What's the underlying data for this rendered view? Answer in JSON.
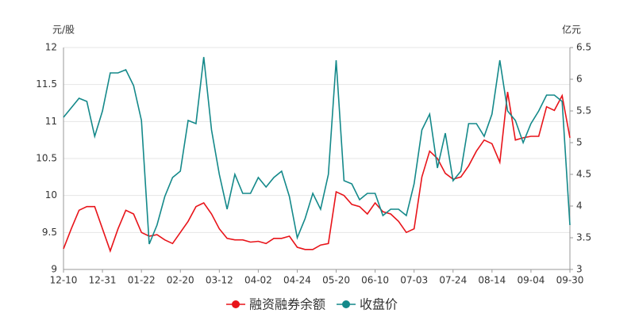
{
  "chart_data": {
    "type": "line",
    "y_label": "元/股",
    "y2_label": "亿元",
    "categories": [
      "12-10",
      null,
      null,
      null,
      null,
      "12-31",
      null,
      null,
      null,
      null,
      "01-22",
      null,
      null,
      null,
      null,
      "02-20",
      null,
      null,
      null,
      null,
      "03-12",
      null,
      null,
      null,
      null,
      "04-02",
      null,
      null,
      null,
      null,
      "04-24",
      null,
      null,
      null,
      null,
      "05-20",
      null,
      null,
      null,
      null,
      "06-10",
      null,
      null,
      null,
      null,
      "07-03",
      null,
      null,
      null,
      null,
      "07-24",
      null,
      null,
      null,
      null,
      "08-14",
      null,
      null,
      null,
      null,
      "09-04",
      null,
      null,
      null,
      null,
      "09-30"
    ],
    "series": [
      {
        "name": "融资融券余额",
        "color": "#e8141a",
        "axis": "y",
        "values": [
          9.28,
          9.55,
          9.8,
          9.85,
          9.85,
          9.55,
          9.25,
          9.55,
          9.8,
          9.75,
          9.5,
          9.45,
          9.47,
          9.4,
          9.35,
          9.5,
          9.65,
          9.85,
          9.9,
          9.75,
          9.55,
          9.42,
          9.4,
          9.4,
          9.37,
          9.38,
          9.35,
          9.42,
          9.42,
          9.45,
          9.3,
          9.27,
          9.27,
          9.33,
          9.35,
          10.05,
          10.0,
          9.88,
          9.85,
          9.75,
          9.9,
          9.78,
          9.75,
          9.65,
          9.5,
          9.55,
          10.25,
          10.6,
          10.5,
          10.3,
          10.22,
          10.25,
          10.4,
          10.6,
          10.75,
          10.7,
          10.45,
          11.4,
          10.75,
          10.78,
          10.8,
          10.8,
          11.2,
          11.15,
          11.35,
          10.78
        ]
      },
      {
        "name": "收盘价",
        "color": "#14898a",
        "axis": "y2",
        "values": [
          5.4,
          5.55,
          5.7,
          5.65,
          5.1,
          5.5,
          6.1,
          6.1,
          6.15,
          5.9,
          5.35,
          3.4,
          3.7,
          4.15,
          4.45,
          4.55,
          5.35,
          5.3,
          6.35,
          5.2,
          4.5,
          3.95,
          4.5,
          4.2,
          4.2,
          4.45,
          4.3,
          4.45,
          4.55,
          4.15,
          3.5,
          3.8,
          4.2,
          3.95,
          4.5,
          6.3,
          4.4,
          4.35,
          4.1,
          4.2,
          4.2,
          3.85,
          3.95,
          3.95,
          3.85,
          4.35,
          5.2,
          5.45,
          4.6,
          5.15,
          4.4,
          4.55,
          5.3,
          5.3,
          5.1,
          5.45,
          6.3,
          5.5,
          5.35,
          5.0,
          5.3,
          5.5,
          5.75,
          5.75,
          5.65,
          3.7
        ]
      }
    ],
    "ylim": [
      9,
      12
    ],
    "yticks": [
      9,
      9.5,
      10,
      10.5,
      11,
      11.5,
      12
    ],
    "y2lim": [
      3,
      6.5
    ],
    "y2ticks": [
      3,
      3.5,
      4,
      4.5,
      5,
      5.5,
      6,
      6.5
    ],
    "grid": true,
    "legend": "bottom"
  }
}
